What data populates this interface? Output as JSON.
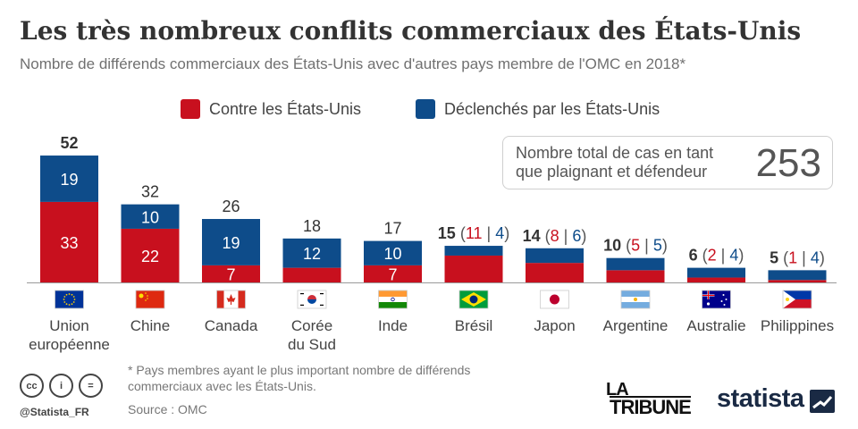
{
  "title": "Les très nombreux conflits commerciaux des États-Unis",
  "subtitle": "Nombre de différends commerciaux des États-Unis avec d'autres pays membre de l'OMC en 2018*",
  "legend": {
    "against": "Contre les États-Unis",
    "by": "Déclenchés par les États-Unis"
  },
  "colors": {
    "against": "#c8101e",
    "by": "#0e4c8a"
  },
  "total_box": {
    "label": "Nombre total de cas en tant que plaignant et défendeur",
    "value": "253"
  },
  "chart_data": {
    "type": "bar",
    "stacked": true,
    "categories": [
      "Union européenne",
      "Chine",
      "Canada",
      "Corée du Sud",
      "Inde",
      "Brésil",
      "Japon",
      "Argentine",
      "Australie",
      "Philippines"
    ],
    "category_lines": [
      [
        "Union",
        "européenne"
      ],
      [
        "Chine"
      ],
      [
        "Canada"
      ],
      [
        "Corée",
        "du Sud"
      ],
      [
        "Inde"
      ],
      [
        "Brésil"
      ],
      [
        "Japon"
      ],
      [
        "Argentine"
      ],
      [
        "Australie"
      ],
      [
        "Philippines"
      ]
    ],
    "flags": [
      "eu-flag",
      "china-flag",
      "canada-flag",
      "south-korea-flag",
      "india-flag",
      "brazil-flag",
      "japan-flag",
      "argentina-flag",
      "australia-flag",
      "philippines-flag"
    ],
    "series": [
      {
        "name": "Contre les États-Unis",
        "values": [
          33,
          22,
          7,
          6,
          7,
          11,
          8,
          5,
          2,
          1
        ]
      },
      {
        "name": "Déclenchés par les États-Unis",
        "values": [
          19,
          10,
          19,
          12,
          10,
          4,
          6,
          5,
          4,
          4
        ]
      }
    ],
    "totals": [
      52,
      32,
      26,
      18,
      17,
      15,
      14,
      10,
      6,
      5
    ],
    "ylim": [
      0,
      52
    ]
  },
  "footnote": "* Pays membres ayant le plus important nombre de différends commerciaux avec les États-Unis.",
  "source": "Source : OMC",
  "handle": "@Statista_FR",
  "brands": {
    "tribune_top": "LA",
    "tribune_bottom": "TRIBUNE",
    "statista": "statista"
  },
  "license_icons": [
    "cc",
    "i",
    "="
  ]
}
